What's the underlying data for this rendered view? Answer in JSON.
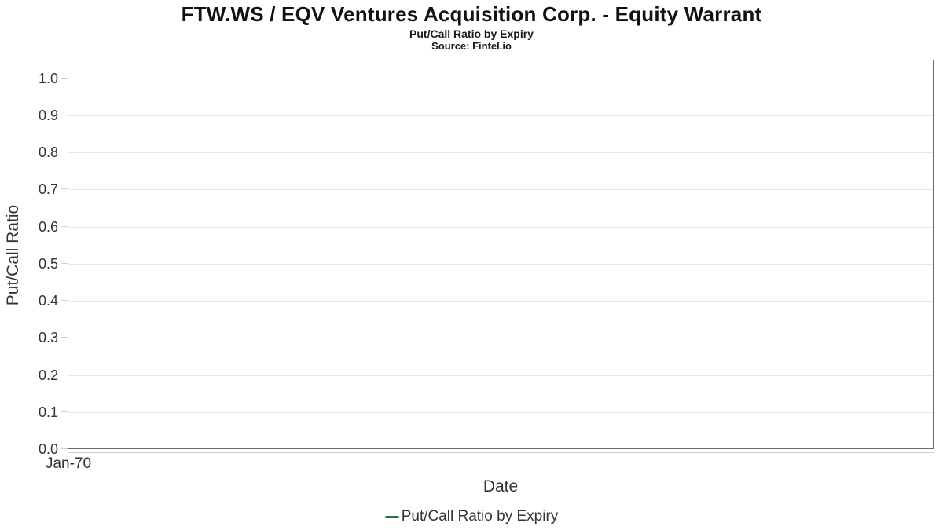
{
  "header": {
    "title": "FTW.WS / EQV Ventures Acquisition Corp. - Equity Warrant",
    "subtitle": "Put/Call Ratio by Expiry",
    "source": "Source: Fintel.io"
  },
  "axes": {
    "y_label": "Put/Call Ratio",
    "x_label": "Date",
    "x_tick_labels": [
      "Jan-70"
    ],
    "y_tick_labels": [
      "0.0",
      "0.1",
      "0.2",
      "0.3",
      "0.4",
      "0.5",
      "0.6",
      "0.7",
      "0.8",
      "0.9",
      "1.0"
    ]
  },
  "legend": {
    "items": [
      {
        "label": "Put/Call Ratio by Expiry",
        "color": "#2f6b3c"
      }
    ]
  },
  "colors": {
    "series_green": "#2f6b3c",
    "plot_border": "#6b6b6b",
    "gridline": "#e6e6e6",
    "axis_line": "#cccccc",
    "text": "#333333"
  },
  "chart_data": {
    "type": "line",
    "title": "FTW.WS / EQV Ventures Acquisition Corp. - Equity Warrant",
    "subtitle": "Put/Call Ratio by Expiry",
    "source": "Source: Fintel.io",
    "xlabel": "Date",
    "ylabel": "Put/Call Ratio",
    "x_tick_labels": [
      "Jan-70"
    ],
    "y_ticks": [
      0.0,
      0.1,
      0.2,
      0.3,
      0.4,
      0.5,
      0.6,
      0.7,
      0.8,
      0.9,
      1.0
    ],
    "ylim": [
      0,
      1.05
    ],
    "grid": true,
    "legend_position": "bottom",
    "series": [
      {
        "name": "Put/Call Ratio by Expiry",
        "color": "#2f6b3c",
        "x": [],
        "values": []
      }
    ]
  }
}
